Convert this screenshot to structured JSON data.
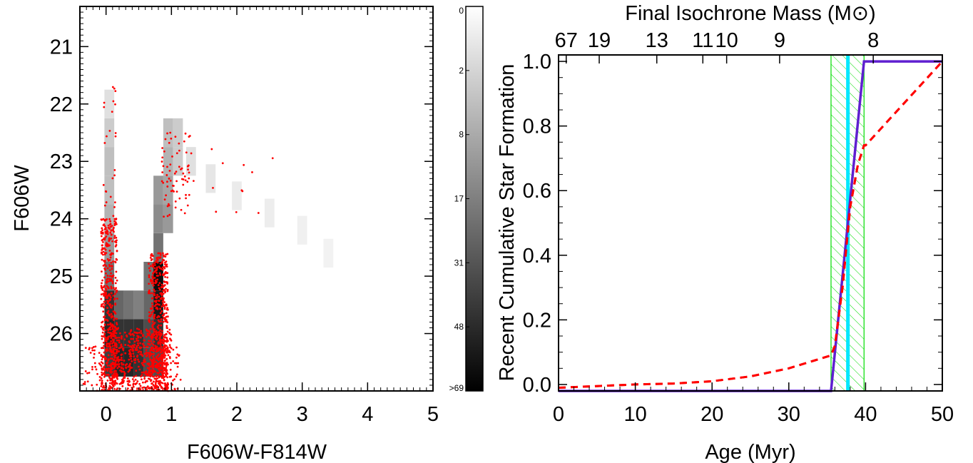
{
  "chart_data": [
    {
      "type": "scatter",
      "xlabel": "F606W-F814W",
      "ylabel": "F606W",
      "xlim": [
        -0.4,
        5.0
      ],
      "ylim": [
        27.0,
        20.3
      ],
      "y_inverted": true,
      "xticks": [
        0,
        1,
        2,
        3,
        4,
        5
      ],
      "xtick_labels": [
        "0",
        "1",
        "2",
        "3",
        "4",
        "5"
      ],
      "yticks": [
        21,
        22,
        23,
        24,
        25,
        26
      ],
      "ytick_labels": [
        "21",
        "22",
        "23",
        "24",
        "25",
        "26"
      ],
      "grid": false,
      "background": "grayscale 2D histogram (Hess diagram) of model star counts",
      "points_color": "#ff0000",
      "density_cells": [
        [
          0.05,
          25.0,
          0.55
        ],
        [
          0.05,
          25.5,
          0.8
        ],
        [
          0.05,
          26.0,
          0.85
        ],
        [
          0.05,
          26.5,
          0.75
        ],
        [
          0.05,
          24.5,
          0.4
        ],
        [
          0.05,
          24.0,
          0.3
        ],
        [
          0.05,
          23.5,
          0.25
        ],
        [
          0.05,
          23.0,
          0.25
        ],
        [
          0.05,
          22.5,
          0.2
        ],
        [
          0.05,
          22.0,
          0.12
        ],
        [
          0.2,
          25.5,
          0.6
        ],
        [
          0.2,
          26.0,
          0.8
        ],
        [
          0.2,
          26.5,
          0.85
        ],
        [
          0.35,
          25.5,
          0.55
        ],
        [
          0.35,
          26.0,
          0.8
        ],
        [
          0.35,
          26.5,
          0.85
        ],
        [
          0.5,
          25.5,
          0.5
        ],
        [
          0.5,
          26.0,
          0.8
        ],
        [
          0.5,
          26.5,
          0.8
        ],
        [
          0.65,
          25.0,
          0.55
        ],
        [
          0.65,
          25.5,
          0.6
        ],
        [
          0.65,
          26.0,
          0.7
        ],
        [
          0.65,
          26.5,
          0.7
        ],
        [
          0.8,
          24.5,
          0.55
        ],
        [
          0.8,
          25.0,
          0.95
        ],
        [
          0.8,
          25.5,
          0.9
        ],
        [
          0.8,
          26.0,
          0.8
        ],
        [
          0.8,
          26.5,
          0.7
        ],
        [
          0.8,
          24.0,
          0.45
        ],
        [
          0.8,
          23.5,
          0.4
        ],
        [
          0.95,
          24.0,
          0.4
        ],
        [
          0.95,
          23.5,
          0.35
        ],
        [
          0.95,
          23.0,
          0.3
        ],
        [
          0.95,
          22.5,
          0.25
        ],
        [
          1.1,
          22.5,
          0.2
        ],
        [
          1.1,
          23.0,
          0.2
        ],
        [
          1.3,
          23.0,
          0.12
        ],
        [
          1.6,
          23.3,
          0.1
        ],
        [
          2.0,
          23.6,
          0.08
        ],
        [
          2.5,
          23.9,
          0.07
        ],
        [
          3.0,
          24.2,
          0.06
        ],
        [
          3.4,
          24.6,
          0.05
        ]
      ]
    },
    {
      "type": "colorbar",
      "tick_labels": [
        "0",
        "2",
        "8",
        "17",
        "31",
        "48",
        ">69"
      ],
      "colormap": "white-to-black"
    },
    {
      "type": "line",
      "title": "Final Isochrone Mass (M⊙)",
      "xlabel": "Age (Myr)",
      "ylabel": "Recent Cumulative Star Formation",
      "xlim": [
        0,
        50
      ],
      "ylim": [
        -0.02,
        1.02
      ],
      "xticks": [
        0,
        10,
        20,
        30,
        40,
        50
      ],
      "xtick_labels": [
        "0",
        "10",
        "20",
        "30",
        "40",
        "50"
      ],
      "yticks": [
        0.0,
        0.2,
        0.4,
        0.6,
        0.8,
        1.0
      ],
      "ytick_labels": [
        "0.0",
        "0.2",
        "0.4",
        "0.6",
        "0.8",
        "1.0"
      ],
      "top_axis": {
        "label": "Final Isochrone Mass (M⊙)",
        "ticks": [
          {
            "age": 1.0,
            "label": "67"
          },
          {
            "age": 5.3,
            "label": "19"
          },
          {
            "age": 12.8,
            "label": "13"
          },
          {
            "age": 18.8,
            "label": "11"
          },
          {
            "age": 21.9,
            "label": "10"
          },
          {
            "age": 28.8,
            "label": "9"
          },
          {
            "age": 41.0,
            "label": "8"
          }
        ]
      },
      "grid": false,
      "series": [
        {
          "color": "#ff0000",
          "style": "dashed",
          "x": [
            0,
            5,
            10,
            15,
            20,
            25,
            30,
            35.5,
            36,
            37,
            38,
            39,
            39.8,
            40,
            45,
            50
          ],
          "y": [
            -0.01,
            -0.005,
            0.0,
            0.003,
            0.01,
            0.025,
            0.05,
            0.09,
            0.12,
            0.3,
            0.55,
            0.68,
            0.74,
            0.74,
            0.87,
            1.0
          ]
        },
        {
          "color": "#5f1fd0",
          "style": "solid",
          "x": [
            0,
            35.5,
            39.8,
            50
          ],
          "y": [
            -0.02,
            -0.02,
            1.0,
            1.0
          ]
        }
      ],
      "best_fit_age": {
        "value": 37.7,
        "color": "#00e8ff"
      },
      "uncertainty_band": {
        "range": [
          35.5,
          39.8
        ],
        "color": "#00dd00",
        "hatch": "diagonal"
      }
    }
  ]
}
